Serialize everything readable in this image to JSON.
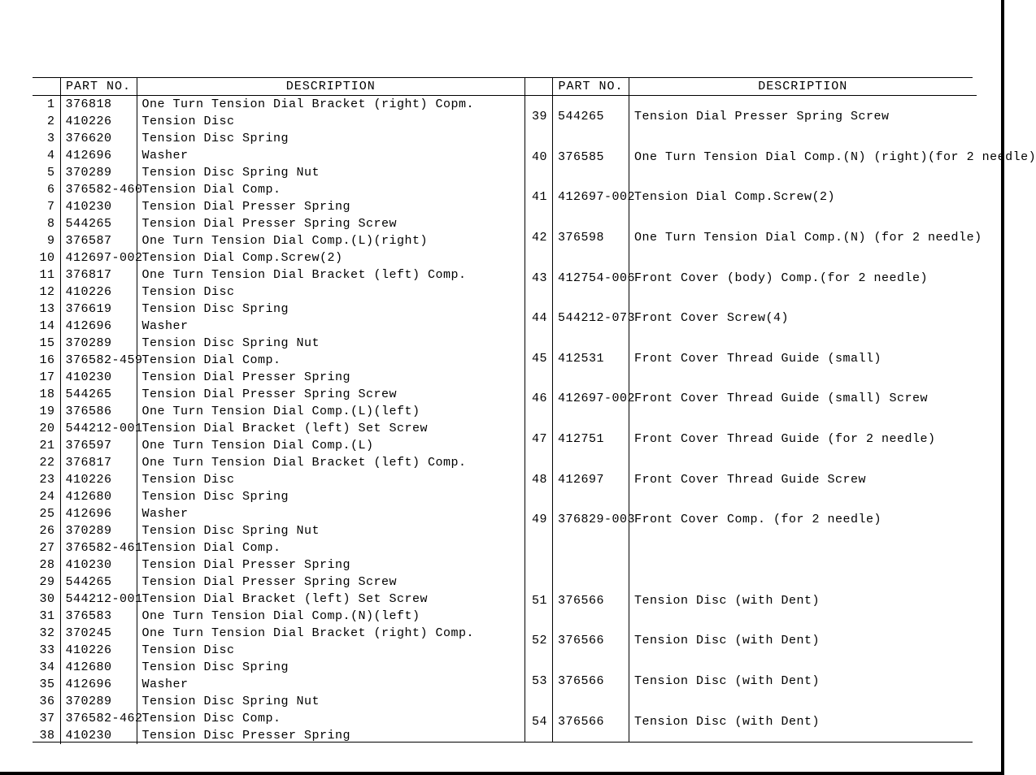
{
  "headers": {
    "part_no": "PART NO.",
    "description": "DESCRIPTION"
  },
  "left_rows": [
    {
      "idx": "1",
      "part": "376818",
      "desc": "One Turn Tension Dial Bracket (right) Copm."
    },
    {
      "idx": "2",
      "part": "410226",
      "desc": "Tension Disc"
    },
    {
      "idx": "3",
      "part": "376620",
      "desc": "Tension Disc Spring"
    },
    {
      "idx": "4",
      "part": "412696",
      "desc": "Washer"
    },
    {
      "idx": "5",
      "part": "370289",
      "desc": "Tension Disc Spring Nut"
    },
    {
      "idx": "6",
      "part": "376582-460",
      "desc": "Tension Dial Comp."
    },
    {
      "idx": "7",
      "part": "410230",
      "desc": "Tension Dial Presser Spring"
    },
    {
      "idx": "8",
      "part": "544265",
      "desc": "Tension Dial Presser Spring Screw"
    },
    {
      "idx": "9",
      "part": "376587",
      "desc": "One Turn Tension Dial Comp.(L)(right)"
    },
    {
      "idx": "10",
      "part": "412697-002",
      "desc": "Tension Dial Comp.Screw(2)"
    },
    {
      "idx": "11",
      "part": "376817",
      "desc": "One Turn Tension Dial Bracket (left) Comp."
    },
    {
      "idx": "12",
      "part": "410226",
      "desc": "Tension Disc"
    },
    {
      "idx": "13",
      "part": "376619",
      "desc": "Tension Disc Spring"
    },
    {
      "idx": "14",
      "part": "412696",
      "desc": "Washer"
    },
    {
      "idx": "15",
      "part": "370289",
      "desc": "Tension Disc Spring Nut"
    },
    {
      "idx": "16",
      "part": "376582-459",
      "desc": "Tension Dial Comp."
    },
    {
      "idx": "17",
      "part": "410230",
      "desc": "Tension Dial Presser Spring"
    },
    {
      "idx": "18",
      "part": "544265",
      "desc": "Tension Dial Presser Spring Screw"
    },
    {
      "idx": "19",
      "part": "376586",
      "desc": "One Turn Tension Dial Comp.(L)(left)"
    },
    {
      "idx": "20",
      "part": "544212-001",
      "desc": "Tension Dial Bracket (left) Set Screw"
    },
    {
      "idx": "21",
      "part": "376597",
      "desc": "One Turn Tension Dial Comp.(L)"
    },
    {
      "idx": "22",
      "part": "376817",
      "desc": "One Turn Tension Dial Bracket (left) Comp."
    },
    {
      "idx": "23",
      "part": "410226",
      "desc": "Tension Disc"
    },
    {
      "idx": "24",
      "part": "412680",
      "desc": "Tension Disc Spring"
    },
    {
      "idx": "25",
      "part": "412696",
      "desc": "Washer"
    },
    {
      "idx": "26",
      "part": "370289",
      "desc": "Tension Disc Spring Nut"
    },
    {
      "idx": "27",
      "part": "376582-461",
      "desc": "Tension Dial Comp."
    },
    {
      "idx": "28",
      "part": "410230",
      "desc": "Tension Dial Presser Spring"
    },
    {
      "idx": "29",
      "part": "544265",
      "desc": "Tension Dial Presser Spring Screw"
    },
    {
      "idx": "30",
      "part": "544212-001",
      "desc": "Tension Dial Bracket (left) Set Screw"
    },
    {
      "idx": "31",
      "part": "376583",
      "desc": "One Turn Tension Dial Comp.(N)(left)"
    },
    {
      "idx": "32",
      "part": "370245",
      "desc": "One Turn Tension Dial Bracket (right) Comp."
    },
    {
      "idx": "33",
      "part": "410226",
      "desc": "Tension Disc"
    },
    {
      "idx": "34",
      "part": "412680",
      "desc": "Tension Disc Spring"
    },
    {
      "idx": "35",
      "part": "412696",
      "desc": "Washer"
    },
    {
      "idx": "36",
      "part": "370289",
      "desc": "Tension Disc Spring Nut"
    },
    {
      "idx": "37",
      "part": "376582-462",
      "desc": "Tension Disc Comp."
    },
    {
      "idx": "38",
      "part": "410230",
      "desc": "Tension Disc Presser Spring"
    }
  ],
  "right_rows": [
    {
      "idx": "39",
      "part": "544265",
      "desc": "Tension Dial Presser Spring Screw"
    },
    {
      "idx": "40",
      "part": "376585",
      "desc": "One Turn Tension Dial Comp.(N) (right)(for 2 needle)"
    },
    {
      "idx": "41",
      "part": "412697-002",
      "desc": "Tension Dial Comp.Screw(2)"
    },
    {
      "idx": "42",
      "part": "376598",
      "desc": "One Turn Tension Dial Comp.(N) (for 2 needle)"
    },
    {
      "idx": "43",
      "part": "412754-006",
      "desc": "Front Cover (body) Comp.(for 2 needle)"
    },
    {
      "idx": "44",
      "part": "544212-073",
      "desc": "Front Cover Screw(4)"
    },
    {
      "idx": "45",
      "part": "412531",
      "desc": "Front Cover Thread Guide (small)"
    },
    {
      "idx": "46",
      "part": "412697-002",
      "desc": "Front Cover Thread Guide (small) Screw"
    },
    {
      "idx": "47",
      "part": "412751",
      "desc": "Front Cover Thread Guide (for 2 needle)"
    },
    {
      "idx": "48",
      "part": "412697",
      "desc": "Front Cover Thread Guide Screw"
    },
    {
      "idx": "49",
      "part": "376829-003",
      "desc": "Front Cover Comp. (for 2 needle)"
    },
    {
      "idx": "",
      "part": "",
      "desc": ""
    },
    {
      "idx": "51",
      "part": "376566",
      "desc": "Tension Disc (with Dent)"
    },
    {
      "idx": "52",
      "part": "376566",
      "desc": "Tension Disc (with Dent)"
    },
    {
      "idx": "53",
      "part": "376566",
      "desc": "Tension Disc (with Dent)"
    },
    {
      "idx": "54",
      "part": "376566",
      "desc": "Tension Disc (with Dent)"
    }
  ]
}
